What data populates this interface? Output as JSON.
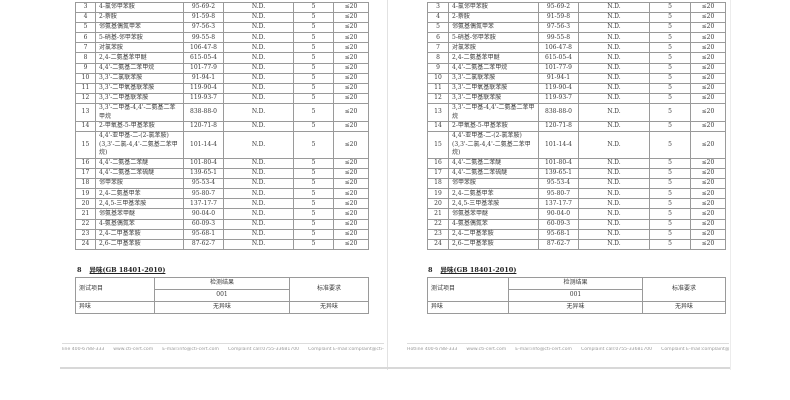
{
  "amines_table": {
    "rows": [
      {
        "no": "3",
        "name": "4-氯邻甲苯胺",
        "cas": "95-69-2",
        "result": "N.D.",
        "lod": "5",
        "limit": "≤20"
      },
      {
        "no": "4",
        "name": "2-萘胺",
        "cas": "91-59-8",
        "result": "N.D.",
        "lod": "5",
        "limit": "≤20"
      },
      {
        "no": "5",
        "name": "邻氨基偶氮甲苯",
        "cas": "97-56-3",
        "result": "N.D.",
        "lod": "5",
        "limit": "≤20"
      },
      {
        "no": "6",
        "name": "5-硝基-邻甲苯胺",
        "cas": "99-55-8",
        "result": "N.D.",
        "lod": "5",
        "limit": "≤20"
      },
      {
        "no": "7",
        "name": "对氯苯胺",
        "cas": "106-47-8",
        "result": "N.D.",
        "lod": "5",
        "limit": "≤20"
      },
      {
        "no": "8",
        "name": "2,4-二氨基苯甲醚",
        "cas": "615-05-4",
        "result": "N.D.",
        "lod": "5",
        "limit": "≤20"
      },
      {
        "no": "9",
        "name": "4,4'-二氨基二苯甲烷",
        "cas": "101-77-9",
        "result": "N.D.",
        "lod": "5",
        "limit": "≤20"
      },
      {
        "no": "10",
        "name": "3,3'-二氯联苯胺",
        "cas": "91-94-1",
        "result": "N.D.",
        "lod": "5",
        "limit": "≤20"
      },
      {
        "no": "11",
        "name": "3,3'-二甲氧基联苯胺",
        "cas": "119-90-4",
        "result": "N.D.",
        "lod": "5",
        "limit": "≤20"
      },
      {
        "no": "12",
        "name": "3,3'-二甲基联苯胺",
        "cas": "119-93-7",
        "result": "N.D.",
        "lod": "5",
        "limit": "≤20"
      },
      {
        "no": "13",
        "name": "3,3'-二甲基-4,4'-二氨基二苯甲烷",
        "cas": "838-88-0",
        "result": "N.D.",
        "lod": "5",
        "limit": "≤20"
      },
      {
        "no": "14",
        "name": "2-甲氧基-5-甲基苯胺",
        "cas": "120-71-8",
        "result": "N.D.",
        "lod": "5",
        "limit": "≤20"
      },
      {
        "no": "15",
        "name": "4,4'-亚甲基-二-(2-氯苯胺)(3,3'-二氯-4,4'-二氨基二苯甲烷)",
        "cas": "101-14-4",
        "result": "N.D.",
        "lod": "5",
        "limit": "≤20"
      },
      {
        "no": "16",
        "name": "4,4'-二氨基二苯醚",
        "cas": "101-80-4",
        "result": "N.D.",
        "lod": "5",
        "limit": "≤20"
      },
      {
        "no": "17",
        "name": "4,4'-二氨基二苯硫醚",
        "cas": "139-65-1",
        "result": "N.D.",
        "lod": "5",
        "limit": "≤20"
      },
      {
        "no": "18",
        "name": "邻甲苯胺",
        "cas": "95-53-4",
        "result": "N.D.",
        "lod": "5",
        "limit": "≤20"
      },
      {
        "no": "19",
        "name": "2,4-二氨基甲苯",
        "cas": "95-80-7",
        "result": "N.D.",
        "lod": "5",
        "limit": "≤20"
      },
      {
        "no": "20",
        "name": "2,4,5-三甲基苯胺",
        "cas": "137-17-7",
        "result": "N.D.",
        "lod": "5",
        "limit": "≤20"
      },
      {
        "no": "21",
        "name": "邻氨基苯甲醚",
        "cas": "90-04-0",
        "result": "N.D.",
        "lod": "5",
        "limit": "≤20"
      },
      {
        "no": "22",
        "name": "4-氨基偶氮苯",
        "cas": "60-09-3",
        "result": "N.D.",
        "lod": "5",
        "limit": "≤20"
      },
      {
        "no": "23",
        "name": "2,4-二甲基苯胺",
        "cas": "95-68-1",
        "result": "N.D.",
        "lod": "5",
        "limit": "≤20"
      },
      {
        "no": "24",
        "name": "2,6-二甲基苯胺",
        "cas": "87-62-7",
        "result": "N.D.",
        "lod": "5",
        "limit": "≤20"
      }
    ]
  },
  "odor_section": {
    "number": "8",
    "title": "异味(GB 18401-2010)",
    "col_item": "测试项目",
    "col_result": "检测结果",
    "sample_id": "001",
    "col_requirement": "标准要求",
    "row_item": "异味",
    "row_result": "无异味",
    "row_requirement": "无异味"
  },
  "footer": {
    "left_items": [
      "line 400-6788-333",
      "www.cti-cert.com",
      "E-mail:info@cti-cert.com",
      "Complaint call:0755-33681700",
      "Complaint E-mail:complaint@cti-cert.com"
    ],
    "right_items": [
      "Hotline 400-6788-333",
      "www.cti-cert.com",
      "E-mail:info@cti-cert.com",
      "Complaint call:0755-33681700",
      "Complaint E-mail:complaint@cti-cert.com"
    ]
  }
}
